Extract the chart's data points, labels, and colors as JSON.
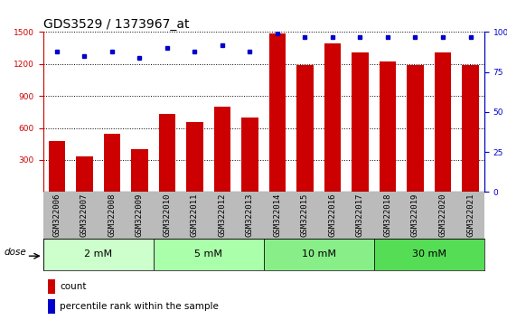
{
  "title": "GDS3529 / 1373967_at",
  "samples": [
    "GSM322006",
    "GSM322007",
    "GSM322008",
    "GSM322009",
    "GSM322010",
    "GSM322011",
    "GSM322012",
    "GSM322013",
    "GSM322014",
    "GSM322015",
    "GSM322016",
    "GSM322017",
    "GSM322018",
    "GSM322019",
    "GSM322020",
    "GSM322021"
  ],
  "counts": [
    480,
    330,
    545,
    400,
    730,
    660,
    800,
    700,
    1490,
    1190,
    1390,
    1310,
    1220,
    1190,
    1310,
    1190
  ],
  "percentiles": [
    88,
    85,
    88,
    84,
    90,
    88,
    92,
    88,
    99,
    97,
    97,
    97,
    97,
    97,
    97,
    97
  ],
  "ylim_left": [
    0,
    1500
  ],
  "ylim_right": [
    0,
    100
  ],
  "yticks_left": [
    300,
    600,
    900,
    1200,
    1500
  ],
  "yticks_right": [
    0,
    25,
    50,
    75,
    100
  ],
  "bar_color": "#cc0000",
  "dot_color": "#0000cc",
  "dose_groups": [
    {
      "label": "2 mM",
      "start": 0,
      "end": 4
    },
    {
      "label": "5 mM",
      "start": 4,
      "end": 8
    },
    {
      "label": "10 mM",
      "start": 8,
      "end": 12
    },
    {
      "label": "30 mM",
      "start": 12,
      "end": 16
    }
  ],
  "dose_colors": [
    "#ccffcc",
    "#aaffaa",
    "#88ee88",
    "#55dd55"
  ],
  "xlabel_area_color": "#bbbbbb",
  "legend_red_label": "count",
  "legend_blue_label": "percentile rank within the sample",
  "title_fontsize": 10,
  "tick_fontsize": 6.5,
  "dose_label": "dose"
}
